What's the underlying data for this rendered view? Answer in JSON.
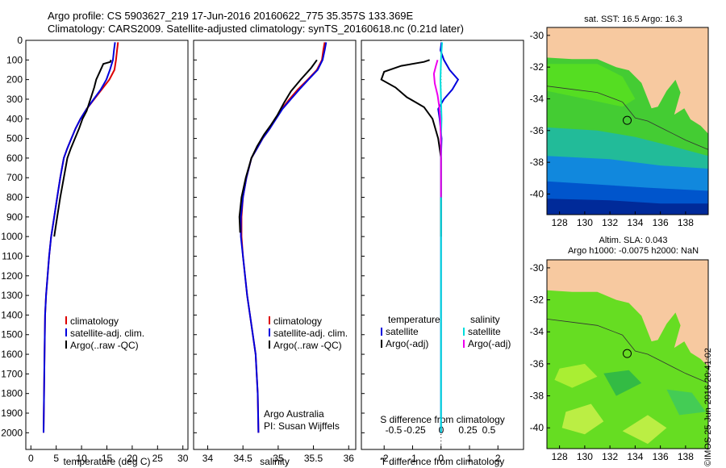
{
  "header": {
    "line1": "Argo profile: CS 5903627_219 17-Jun-2016 20160622_775 35.357S 133.369E",
    "line2": "Climatology: CARS2009. Satellite-adjusted climatology: synTS_20160618.nc (0.21d later)"
  },
  "colors": {
    "climatology": "#dd0000",
    "satellite": "#0000dd",
    "argo": "#000000",
    "salinity_satellite": "#00dddd",
    "salinity_argo": "#ee00ee",
    "land": "#f7c9a0"
  },
  "chart_data": [
    {
      "type": "line",
      "title": "",
      "xlabel": "temperature (deg C)",
      "ylabel": "",
      "xlim": [
        -1,
        31
      ],
      "ylim": [
        0,
        2085
      ],
      "xticks": [
        "0",
        "5",
        "10",
        "15",
        "20",
        "25",
        "30"
      ],
      "xtick_values": [
        0,
        5,
        10,
        15,
        20,
        25,
        30
      ],
      "yticks": [
        "0",
        "100",
        "200",
        "300",
        "400",
        "500",
        "600",
        "700",
        "800",
        "900",
        "1000",
        "1100",
        "1200",
        "1300",
        "1400",
        "1500",
        "1600",
        "1700",
        "1800",
        "1900",
        "2000"
      ],
      "ytick_values": [
        0,
        100,
        200,
        300,
        400,
        500,
        600,
        700,
        800,
        900,
        1000,
        1100,
        1200,
        1300,
        1400,
        1500,
        1600,
        1700,
        1800,
        1900,
        2000
      ],
      "legend": [
        "climatology",
        "satellite-adj. clim.",
        "Argo(..raw -QC)"
      ],
      "series": [
        {
          "name": "climatology",
          "color": "#dd0000",
          "x": [
            17.2,
            17.0,
            16.8,
            16.5,
            15.5,
            14.0,
            12.5,
            11.0,
            9.8,
            8.8,
            8.0,
            7.2,
            6.5,
            5.8,
            5.2,
            4.6,
            4.0,
            3.6,
            3.3,
            3.0,
            2.8,
            2.7,
            2.6,
            2.5
          ],
          "y": [
            10,
            50,
            100,
            150,
            200,
            250,
            300,
            350,
            400,
            450,
            500,
            550,
            600,
            700,
            800,
            900,
            1000,
            1100,
            1200,
            1300,
            1400,
            1600,
            1800,
            2000
          ]
        },
        {
          "name": "satellite-adj. clim.",
          "color": "#0000dd",
          "x": [
            16.6,
            16.4,
            16.2,
            15.6,
            14.9,
            13.8,
            12.4,
            11.0,
            9.8,
            8.8,
            8.0,
            7.2,
            6.5,
            5.8,
            5.2,
            4.6,
            4.0,
            3.6,
            3.3,
            3.0,
            2.8,
            2.7,
            2.6,
            2.5
          ],
          "y": [
            10,
            50,
            100,
            150,
            200,
            250,
            300,
            350,
            400,
            450,
            500,
            550,
            600,
            700,
            800,
            900,
            1000,
            1100,
            1200,
            1300,
            1400,
            1600,
            1800,
            2000
          ]
        },
        {
          "name": "Argo(..raw -QC)",
          "color": "#000000",
          "x": [
            15.8,
            15.7,
            14.3,
            13.6,
            12.9,
            12.5,
            12.0,
            11.5,
            11.0,
            10.2,
            9.5,
            8.7,
            7.9,
            7.2,
            6.5,
            5.8,
            5.2,
            4.6
          ],
          "y": [
            100,
            110,
            120,
            160,
            200,
            240,
            280,
            320,
            360,
            400,
            450,
            500,
            550,
            600,
            700,
            800,
            900,
            1000
          ]
        }
      ]
    },
    {
      "type": "line",
      "title": "",
      "xlabel": "salinity",
      "ylabel": "",
      "xlim": [
        33.8,
        36.1
      ],
      "ylim": [
        0,
        2085
      ],
      "xticks": [
        "34",
        "34.5",
        "35",
        "35.5",
        "36"
      ],
      "xtick_values": [
        34,
        34.5,
        35,
        35.5,
        36
      ],
      "legend": [
        "climatology",
        "satellite-adj. clim.",
        "Argo(..raw -QC)"
      ],
      "annotations": [
        "Argo Australia",
        "PI: Susan Wijffels"
      ],
      "series": [
        {
          "name": "climatology",
          "color": "#dd0000",
          "x": [
            35.66,
            35.64,
            35.62,
            35.55,
            35.42,
            35.28,
            35.16,
            35.05,
            34.96,
            34.88,
            34.78,
            34.7,
            34.62,
            34.55,
            34.5,
            34.48,
            34.48,
            34.5,
            34.53,
            34.56,
            34.6,
            34.64,
            34.68,
            34.71,
            34.72
          ],
          "y": [
            10,
            50,
            100,
            150,
            200,
            250,
            300,
            350,
            400,
            450,
            500,
            550,
            600,
            700,
            800,
            900,
            1000,
            1100,
            1200,
            1300,
            1400,
            1500,
            1600,
            1800,
            2000
          ]
        },
        {
          "name": "satellite-adj. clim.",
          "color": "#0000dd",
          "x": [
            35.68,
            35.66,
            35.63,
            35.56,
            35.43,
            35.3,
            35.18,
            35.06,
            34.97,
            34.88,
            34.78,
            34.7,
            34.62,
            34.55,
            34.5,
            34.47,
            34.47,
            34.5,
            34.53,
            34.56,
            34.6,
            34.64,
            34.68,
            34.71,
            34.72
          ],
          "y": [
            10,
            50,
            100,
            150,
            200,
            250,
            300,
            350,
            400,
            450,
            500,
            550,
            600,
            700,
            800,
            900,
            1000,
            1100,
            1200,
            1300,
            1400,
            1500,
            1600,
            1800,
            2000
          ]
        },
        {
          "name": "Argo(..raw -QC)",
          "color": "#000000",
          "x": [
            35.55,
            35.47,
            35.32,
            35.18,
            35.08,
            34.99,
            34.9,
            34.8,
            34.7,
            34.62,
            34.54,
            34.48,
            34.45,
            34.46
          ],
          "y": [
            100,
            140,
            200,
            260,
            320,
            380,
            430,
            480,
            540,
            600,
            700,
            800,
            900,
            980
          ]
        }
      ]
    },
    {
      "type": "line",
      "title": "",
      "xlabel": "T difference from climatology",
      "xlabel_top": "S difference from climatology",
      "xlim": [
        -2.8,
        2.9
      ],
      "ylim": [
        0,
        2085
      ],
      "xticks": [
        "-2",
        "-1",
        "0",
        "1",
        "2"
      ],
      "xtick_values": [
        -2,
        -1,
        0,
        1,
        2
      ],
      "xticks_top": [
        "-0.5",
        "-0.25",
        "0",
        "0.25",
        "0.5"
      ],
      "legend_titles": [
        "temperature",
        "salinity"
      ],
      "legend": [
        "satellite",
        "Argo(-adj)",
        "satellite",
        "Argo(-adj)"
      ],
      "series": [
        {
          "name": "temperature satellite",
          "color": "#0000dd",
          "x": [
            0.02,
            -0.02,
            0.1,
            0.3,
            0.6,
            0.4,
            0.1,
            -0.1,
            -0.05,
            0.02,
            0.0,
            0.0,
            0.0,
            0.0,
            0.0
          ],
          "y": [
            10,
            50,
            100,
            150,
            200,
            250,
            300,
            350,
            400,
            500,
            600,
            800,
            1000,
            1500,
            2000
          ]
        },
        {
          "name": "temperature Argo(-adj)",
          "color": "#000000",
          "x": [
            -0.4,
            -0.6,
            -1.4,
            -2.0,
            -2.1,
            -1.6,
            -1.2,
            -0.6,
            -0.3,
            -0.1,
            0.0,
            0.0,
            0.0
          ],
          "y": [
            100,
            110,
            130,
            160,
            200,
            240,
            290,
            340,
            400,
            500,
            600,
            800,
            1000
          ]
        },
        {
          "name": "salinity satellite",
          "color": "#00dddd",
          "x": [
            0.04,
            0.02,
            0.0,
            -0.02,
            0.0,
            0.02,
            0.0,
            0.0,
            0.0,
            0.0,
            0.0
          ],
          "y": [
            10,
            50,
            100,
            200,
            300,
            400,
            500,
            700,
            1000,
            1500,
            2000
          ]
        },
        {
          "name": "salinity Argo(-adj)",
          "color": "#ee00ee",
          "x": [
            -0.12,
            -0.18,
            -0.25,
            -0.22,
            -0.12,
            -0.06,
            -0.03,
            -0.01,
            0.0,
            0.0
          ],
          "y": [
            100,
            130,
            170,
            220,
            280,
            340,
            400,
            480,
            600,
            800
          ]
        }
      ]
    },
    {
      "type": "heatmap",
      "title": "sat. SST: 16.5 Argo: 16.3",
      "xticks": [
        "128",
        "130",
        "132",
        "134",
        "136",
        "138"
      ],
      "xtick_values": [
        128,
        130,
        132,
        134,
        136,
        138
      ],
      "yticks": [
        "-30",
        "-32",
        "-34",
        "-36",
        "-38",
        "-40"
      ],
      "ytick_values": [
        -30,
        -32,
        -34,
        -36,
        -38,
        -40
      ],
      "xlim": [
        127,
        139.8
      ],
      "ylim": [
        -41.3,
        -29.5
      ],
      "float_position": [
        133.369,
        -35.357
      ]
    },
    {
      "type": "heatmap",
      "title_line1": "Altim. SLA: 0.043",
      "title_line2": "Argo h1000: -0.0075 h2000: NaN",
      "xticks": [
        "128",
        "130",
        "132",
        "134",
        "136",
        "138"
      ],
      "xtick_values": [
        128,
        130,
        132,
        134,
        136,
        138
      ],
      "yticks": [
        "-30",
        "-32",
        "-34",
        "-36",
        "-38",
        "-40"
      ],
      "ytick_values": [
        -30,
        -32,
        -34,
        -36,
        -38,
        -40
      ],
      "xlim": [
        127,
        139.8
      ],
      "ylim": [
        -41.3,
        -29.5
      ],
      "float_position": [
        133.369,
        -35.357
      ]
    }
  ],
  "watermark": "©IMOS 25-Jun-2016 20:41:02"
}
